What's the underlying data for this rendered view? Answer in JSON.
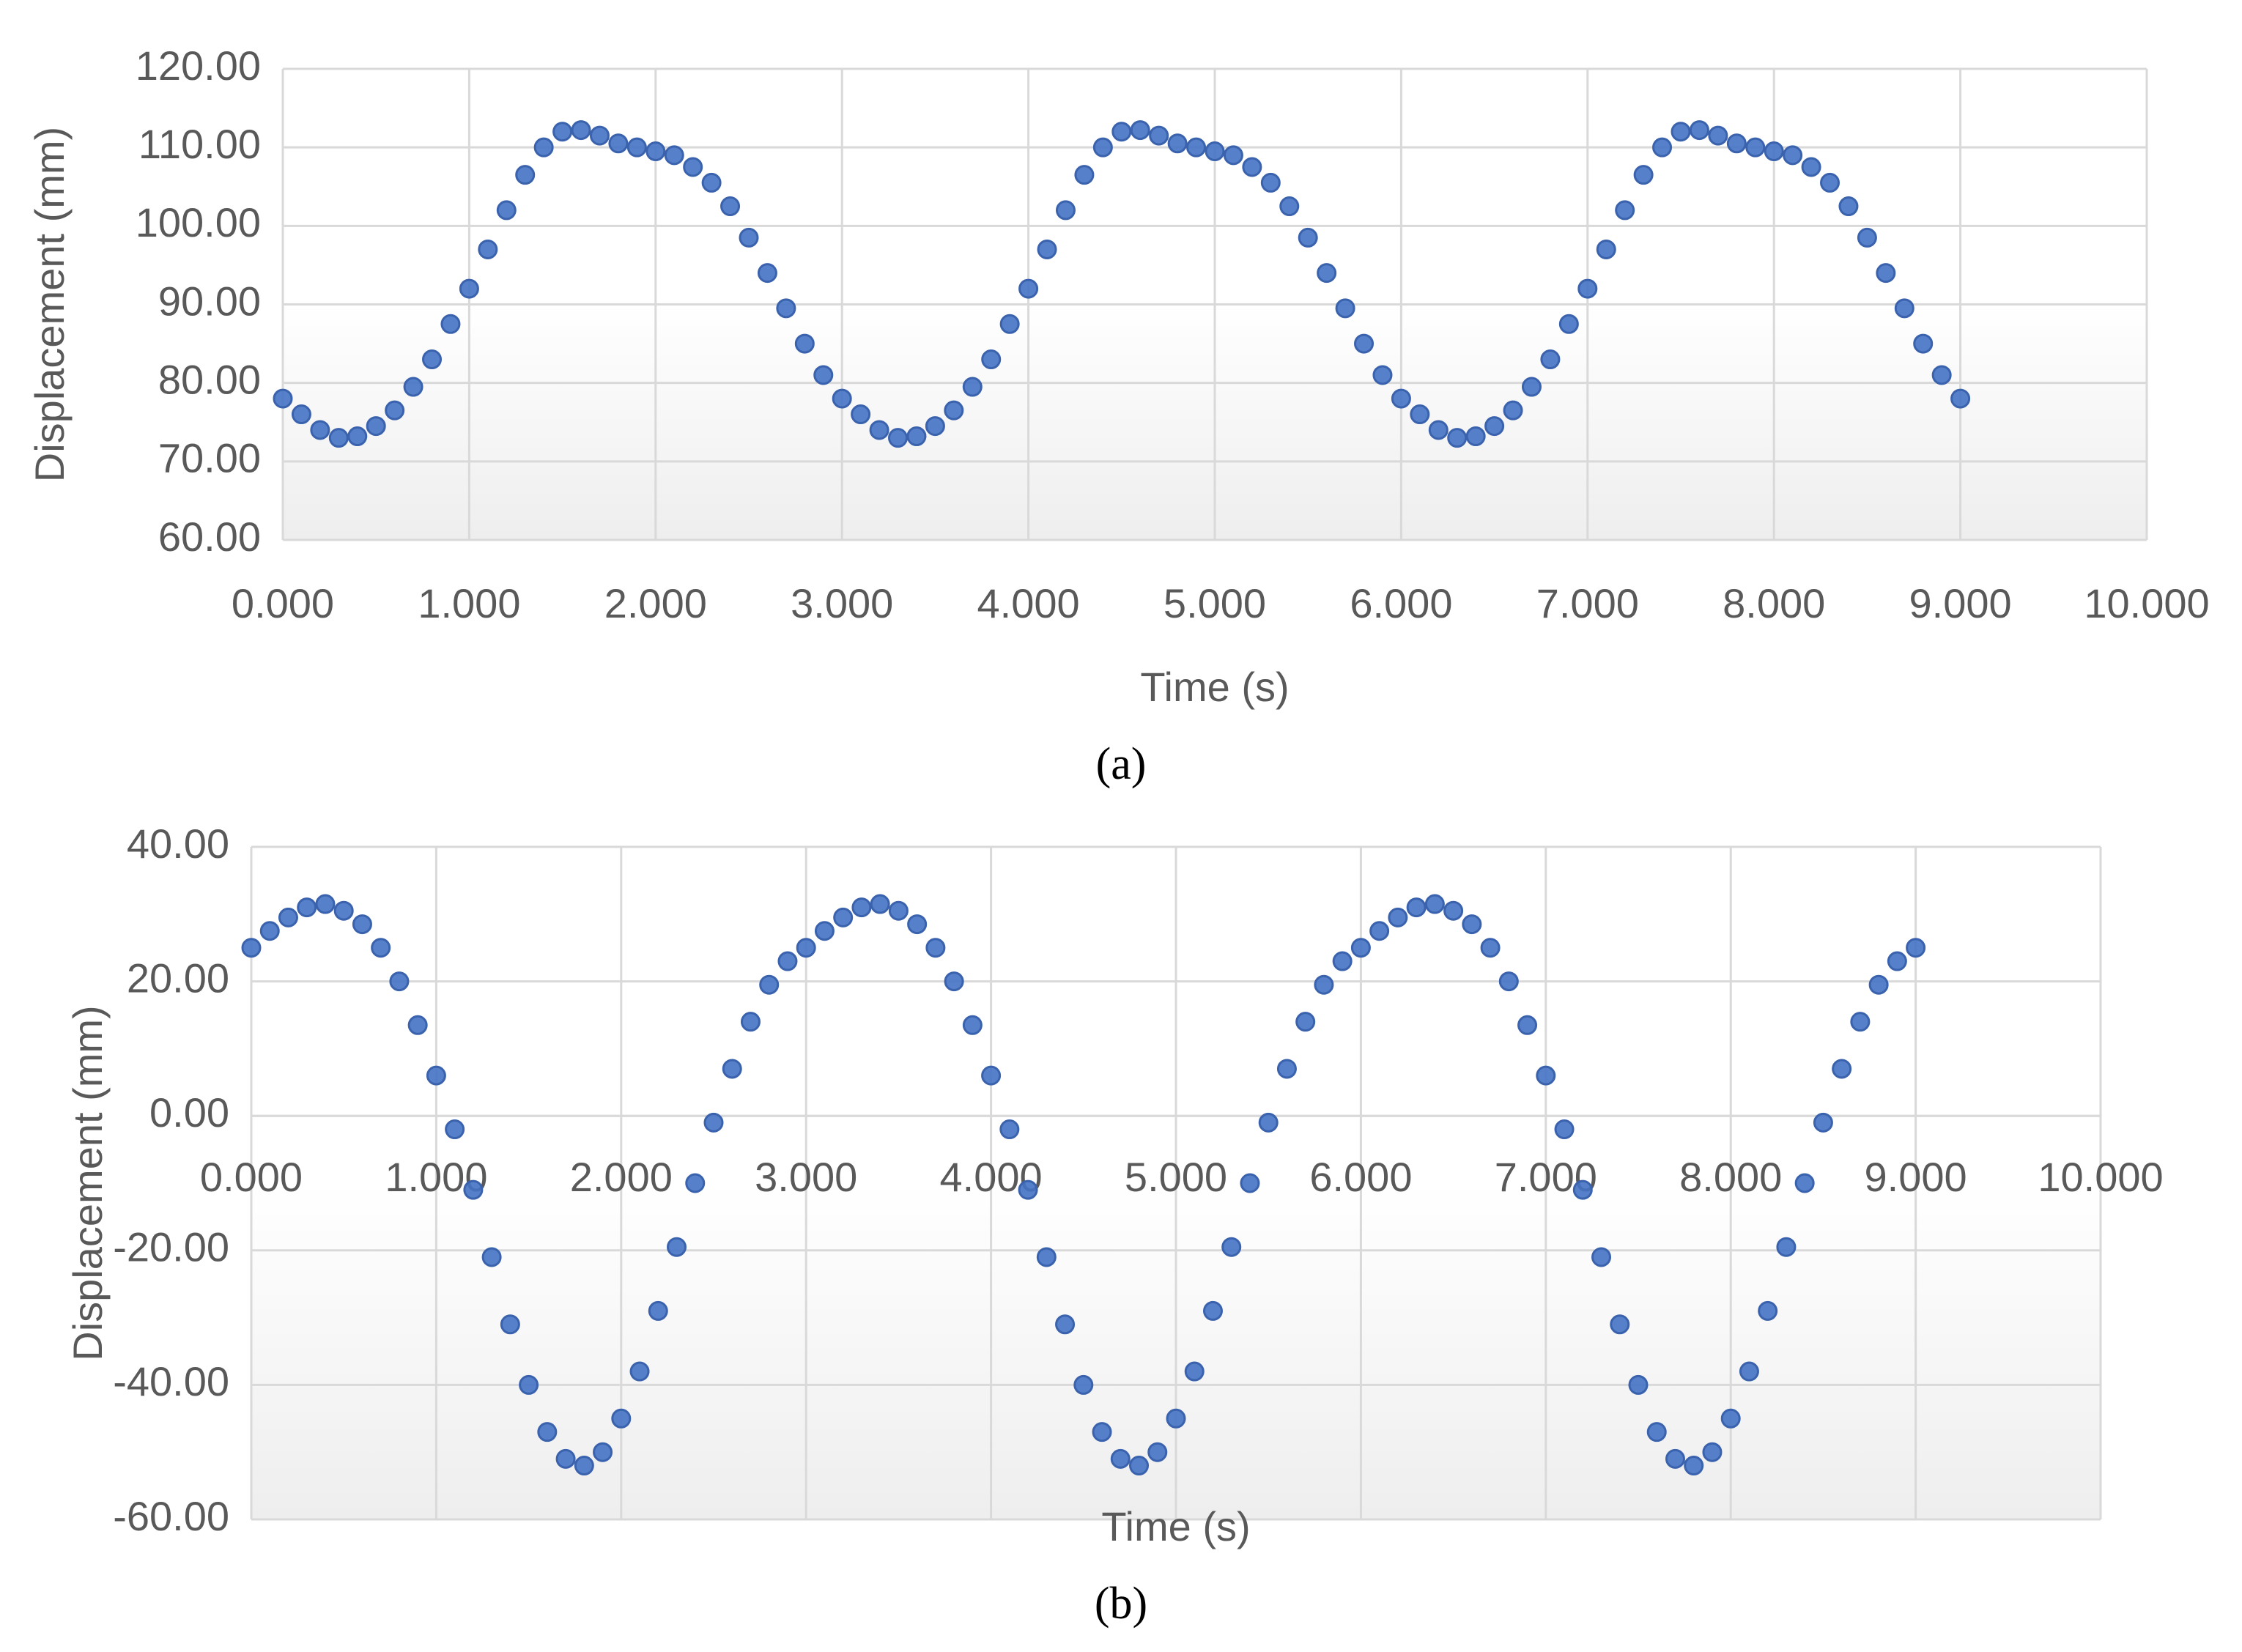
{
  "chart_data": [
    {
      "type": "scatter",
      "caption": "(a)",
      "x_label": "Time (s)",
      "y_label": "Displacement (mm)",
      "color": "#4472c4",
      "grid": true,
      "xlim": [
        0,
        10
      ],
      "ylim": [
        60,
        120
      ],
      "xticks": [
        {
          "value": 0,
          "label": "0.000"
        },
        {
          "value": 1,
          "label": "1.000"
        },
        {
          "value": 2,
          "label": "2.000"
        },
        {
          "value": 3,
          "label": "3.000"
        },
        {
          "value": 4,
          "label": "4.000"
        },
        {
          "value": 5,
          "label": "5.000"
        },
        {
          "value": 6,
          "label": "6.000"
        },
        {
          "value": 7,
          "label": "7.000"
        },
        {
          "value": 8,
          "label": "8.000"
        },
        {
          "value": 9,
          "label": "9.000"
        },
        {
          "value": 10,
          "label": "10.000"
        }
      ],
      "yticks": [
        {
          "value": 60,
          "label": "60.00"
        },
        {
          "value": 70,
          "label": "70.00"
        },
        {
          "value": 80,
          "label": "80.00"
        },
        {
          "value": 90,
          "label": "90.00"
        },
        {
          "value": 100,
          "label": "100.00"
        },
        {
          "value": 110,
          "label": "110.00"
        },
        {
          "value": 120,
          "label": "120.00"
        }
      ],
      "x": [
        0,
        0.1,
        0.2,
        0.3,
        0.4,
        0.5,
        0.6,
        0.7,
        0.8,
        0.9,
        1,
        1.1,
        1.2,
        1.3,
        1.4,
        1.5,
        1.6,
        1.7,
        1.8,
        1.9,
        2,
        2.1,
        2.2,
        2.3,
        2.4,
        2.5,
        2.6,
        2.7,
        2.8,
        2.9,
        3,
        3.1,
        3.2,
        3.3,
        3.4,
        3.5,
        3.6,
        3.7,
        3.8,
        3.9,
        4,
        4.1,
        4.2,
        4.3,
        4.4,
        4.5,
        4.6,
        4.7,
        4.8,
        4.9,
        5,
        5.1,
        5.2,
        5.3,
        5.4,
        5.5,
        5.6,
        5.7,
        5.8,
        5.9,
        6,
        6.1,
        6.2,
        6.3,
        6.4,
        6.5,
        6.6,
        6.7,
        6.8,
        6.9,
        7,
        7.1,
        7.2,
        7.3,
        7.4,
        7.5,
        7.6,
        7.7,
        7.8,
        7.9,
        8,
        8.1,
        8.2,
        8.3,
        8.4,
        8.5,
        8.6,
        8.7,
        8.8,
        8.9,
        9
      ],
      "values": [
        78,
        76,
        74,
        73,
        73.2,
        74.5,
        76.5,
        79.5,
        83,
        87.5,
        92,
        97,
        102,
        106.5,
        110,
        112,
        112.2,
        111.5,
        110.5,
        110,
        109.5,
        109,
        107.5,
        105.5,
        102.5,
        98.5,
        94,
        89.5,
        85,
        81,
        78,
        76,
        74,
        73,
        73.2,
        74.5,
        76.5,
        79.5,
        83,
        87.5,
        92,
        97,
        102,
        106.5,
        110,
        112,
        112.2,
        111.5,
        110.5,
        110,
        109.5,
        109,
        107.5,
        105.5,
        102.5,
        98.5,
        94,
        89.5,
        85,
        81,
        78,
        76,
        74,
        73,
        73.2,
        74.5,
        76.5,
        79.5,
        83,
        87.5,
        92,
        97,
        102,
        106.5,
        110,
        112,
        112.2,
        111.5,
        110.5,
        110,
        109.5,
        109,
        107.5,
        105.5,
        102.5,
        98.5,
        94,
        89.5,
        85,
        81,
        78
      ]
    },
    {
      "type": "scatter",
      "caption": "(b)",
      "x_label": "Time (s)",
      "y_label": "Displacement (mm)",
      "color": "#4472c4",
      "grid": true,
      "xlim": [
        0,
        10
      ],
      "ylim": [
        -60,
        40
      ],
      "xticks": [
        {
          "value": 0,
          "label": "0.000"
        },
        {
          "value": 1,
          "label": "1.000"
        },
        {
          "value": 2,
          "label": "2.000"
        },
        {
          "value": 3,
          "label": "3.000"
        },
        {
          "value": 4,
          "label": "4.000"
        },
        {
          "value": 5,
          "label": "5.000"
        },
        {
          "value": 6,
          "label": "6.000"
        },
        {
          "value": 7,
          "label": "7.000"
        },
        {
          "value": 8,
          "label": "8.000"
        },
        {
          "value": 9,
          "label": "9.000"
        },
        {
          "value": 10,
          "label": "10.000"
        }
      ],
      "yticks": [
        {
          "value": -60,
          "label": "-60.00"
        },
        {
          "value": -40,
          "label": "-40.00"
        },
        {
          "value": -20,
          "label": "-20.00"
        },
        {
          "value": 0,
          "label": "0.00"
        },
        {
          "value": 20,
          "label": "20.00"
        },
        {
          "value": 40,
          "label": "40.00"
        }
      ],
      "x": [
        0,
        0.1,
        0.2,
        0.3,
        0.4,
        0.5,
        0.6,
        0.7,
        0.8,
        0.9,
        1,
        1.1,
        1.2,
        1.3,
        1.4,
        1.5,
        1.6,
        1.7,
        1.8,
        1.9,
        2,
        2.1,
        2.2,
        2.3,
        2.4,
        2.5,
        2.6,
        2.7,
        2.8,
        2.9,
        3,
        3.1,
        3.2,
        3.3,
        3.4,
        3.5,
        3.6,
        3.7,
        3.8,
        3.9,
        4,
        4.1,
        4.2,
        4.3,
        4.4,
        4.5,
        4.6,
        4.7,
        4.8,
        4.9,
        5,
        5.1,
        5.2,
        5.3,
        5.4,
        5.5,
        5.6,
        5.7,
        5.8,
        5.9,
        6,
        6.1,
        6.2,
        6.3,
        6.4,
        6.5,
        6.6,
        6.7,
        6.8,
        6.9,
        7,
        7.1,
        7.2,
        7.3,
        7.4,
        7.5,
        7.6,
        7.7,
        7.8,
        7.9,
        8,
        8.1,
        8.2,
        8.3,
        8.4,
        8.5,
        8.6,
        8.7,
        8.8,
        8.9,
        9
      ],
      "values": [
        25,
        27.5,
        29.5,
        31,
        31.5,
        30.5,
        28.5,
        25,
        20,
        13.5,
        6,
        -2,
        -11,
        -21,
        -31,
        -40,
        -47,
        -51,
        -52,
        -50,
        -45,
        -38,
        -29,
        -19.5,
        -10,
        -1,
        7,
        14,
        19.5,
        23,
        25,
        27.5,
        29.5,
        31,
        31.5,
        30.5,
        28.5,
        25,
        20,
        13.5,
        6,
        -2,
        -11,
        -21,
        -31,
        -40,
        -47,
        -51,
        -52,
        -50,
        -45,
        -38,
        -29,
        -19.5,
        -10,
        -1,
        7,
        14,
        19.5,
        23,
        25,
        27.5,
        29.5,
        31,
        31.5,
        30.5,
        28.5,
        25,
        20,
        13.5,
        6,
        -2,
        -11,
        -21,
        -31,
        -40,
        -47,
        -51,
        -52,
        -50,
        -45,
        -38,
        -29,
        -19.5,
        -10,
        -1,
        7,
        14,
        19.5,
        23,
        25
      ]
    }
  ]
}
